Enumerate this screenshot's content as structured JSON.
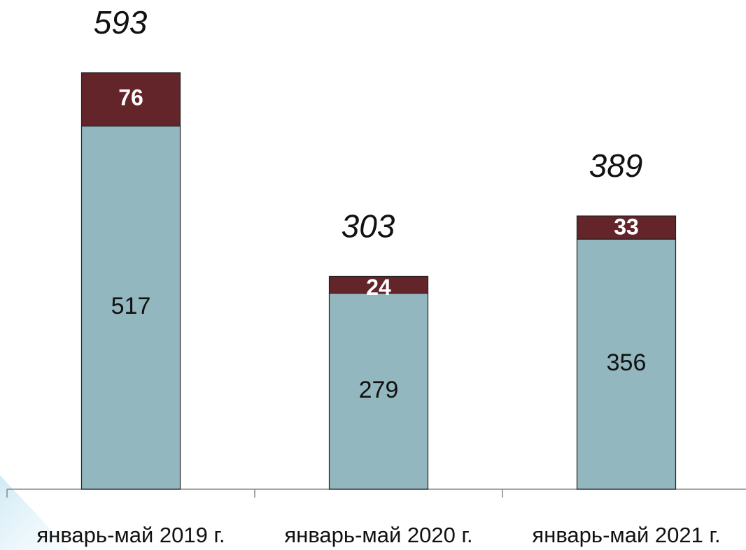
{
  "chart_data": {
    "type": "stacked_bar",
    "categories": [
      "январь-май 2019 г.",
      "январь-май 2020 г.",
      "январь-май 2021 г."
    ],
    "series": [
      {
        "color": "#93b7bf",
        "values": [
          517,
          279,
          356
        ]
      },
      {
        "color": "#63242a",
        "values": [
          76,
          24,
          33
        ]
      }
    ],
    "totals": [
      593,
      303,
      389
    ]
  }
}
